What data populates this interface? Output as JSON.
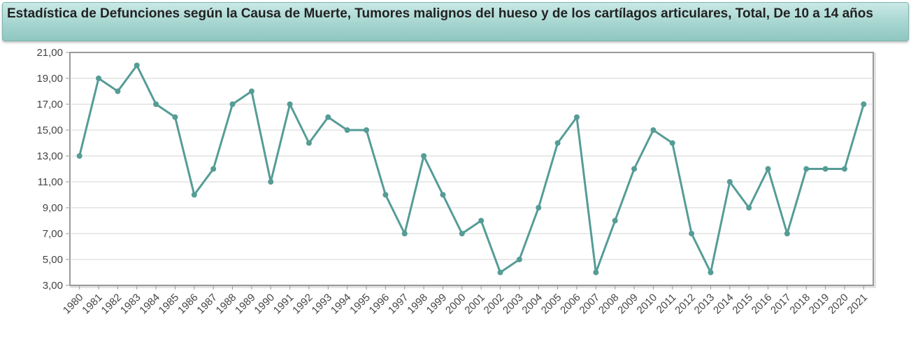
{
  "title": "Estadística de Defunciones según la Causa de Muerte, Tumores malignos del hueso y de los cartílagos articulares, Total, De 10 a 14 años",
  "colors": {
    "line": "#559c96",
    "grid": "#d3d3d3",
    "frame": "#999999"
  },
  "chart_data": {
    "type": "line",
    "title": "Estadística de Defunciones según la Causa de Muerte, Tumores malignos del hueso y de los cartílagos articulares, Total, De 10 a 14 años",
    "xlabel": "",
    "ylabel": "",
    "ylim": [
      3,
      21
    ],
    "yticks": [
      "21,00",
      "19,00",
      "17,00",
      "15,00",
      "13,00",
      "11,00",
      "9,00",
      "7,00",
      "5,00",
      "3,00"
    ],
    "categories": [
      "1980",
      "1981",
      "1982",
      "1983",
      "1984",
      "1985",
      "1986",
      "1987",
      "1988",
      "1989",
      "1990",
      "1991",
      "1992",
      "1993",
      "1994",
      "1995",
      "1996",
      "1997",
      "1998",
      "1999",
      "2000",
      "2001",
      "2002",
      "2003",
      "2004",
      "2005",
      "2006",
      "2007",
      "2008",
      "2009",
      "2010",
      "2011",
      "2012",
      "2013",
      "2014",
      "2015",
      "2016",
      "2017",
      "2018",
      "2019",
      "2020",
      "2021"
    ],
    "series": [
      {
        "values": [
          13,
          19,
          18,
          20,
          17,
          16,
          10,
          12,
          17,
          18,
          11,
          17,
          14,
          16,
          15,
          15,
          10,
          7,
          13,
          10,
          7,
          8,
          4,
          5,
          9,
          14,
          16,
          4,
          8,
          12,
          15,
          14,
          7,
          4,
          11,
          9,
          12,
          7,
          12,
          12,
          12,
          17
        ]
      }
    ],
    "grid": true,
    "legend": "none"
  }
}
